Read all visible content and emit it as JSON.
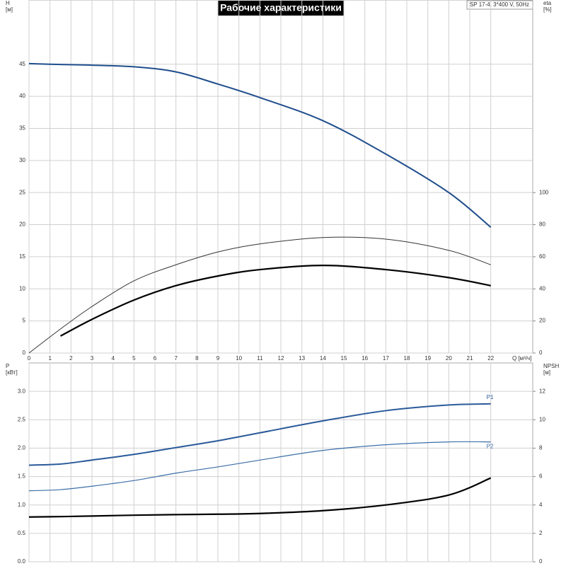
{
  "chart_data": [
    {
      "type": "line",
      "title": "Рабочие характеристики",
      "annotation": "SP 17-4, 3*400 V, 50Hz",
      "ylabel": "H",
      "yunit": "[м]",
      "y2label": "eta",
      "y2unit": "[%]",
      "xlabel": "Q [м³/ч]",
      "x": [
        0,
        1.5,
        3,
        5,
        7,
        9,
        11,
        14,
        17,
        20,
        22
      ],
      "series": [
        {
          "color": "#1f4e8c",
          "width": 2,
          "values": [
            45.1,
            44.95,
            44.85,
            44.6,
            43.8,
            41.9,
            39.8,
            36.2,
            31.0,
            25.0,
            19.6
          ]
        },
        {
          "color": "#333333",
          "width": 1,
          "axis": "y2",
          "values": [
            0,
            15,
            29,
            45,
            55,
            63,
            68,
            72,
            71,
            64,
            55
          ]
        },
        {
          "color": "#000000",
          "width": 2.2,
          "axis": "y2",
          "values": [
            null,
            10.6,
            21,
            33,
            42,
            48,
            52,
            54.6,
            52,
            47,
            42
          ]
        }
      ],
      "xlim": [
        0,
        24
      ],
      "xticks": [
        0,
        1,
        2,
        3,
        4,
        5,
        6,
        7,
        8,
        9,
        10,
        11,
        12,
        13,
        14,
        15,
        16,
        17,
        18,
        19,
        20,
        21,
        22
      ],
      "ylim": [
        0,
        55
      ],
      "yticks": [
        0,
        5,
        10,
        15,
        20,
        25,
        30,
        35,
        40,
        45
      ],
      "y2lim": [
        0,
        220
      ],
      "y2ticks": [
        0,
        20,
        40,
        60,
        80,
        100
      ],
      "grid": true
    },
    {
      "type": "line",
      "ylabel": "P",
      "yunit": "[кВт]",
      "y2label": "NPSH",
      "y2unit": "[м]",
      "x": [
        0,
        1.5,
        3,
        5,
        7,
        9,
        11,
        14,
        17,
        20,
        22
      ],
      "series": [
        {
          "name": "P1",
          "color": "#2a5a9a",
          "width": 2,
          "values": [
            1.7,
            1.72,
            1.79,
            1.89,
            2.01,
            2.13,
            2.27,
            2.48,
            2.66,
            2.76,
            2.78
          ]
        },
        {
          "name": "P2",
          "color": "#3b6ea8",
          "width": 1.2,
          "values": [
            1.25,
            1.27,
            1.33,
            1.43,
            1.56,
            1.67,
            1.79,
            1.96,
            2.06,
            2.11,
            2.11
          ]
        },
        {
          "color": "#000000",
          "width": 2.2,
          "axis": "y2",
          "values": [
            3.15,
            3.18,
            3.22,
            3.28,
            3.32,
            3.35,
            3.4,
            3.6,
            4.0,
            4.7,
            5.9
          ]
        }
      ],
      "xlim": [
        0,
        24
      ],
      "xticks": [
        0,
        1,
        2,
        3,
        4,
        5,
        6,
        7,
        8,
        9,
        10,
        11,
        12,
        13,
        14,
        15,
        16,
        17,
        18,
        19,
        20,
        21,
        22
      ],
      "ylim": [
        0,
        3.5
      ],
      "yticks": [
        {
          "value": 0,
          "label": "0.0"
        },
        0.5,
        {
          "value": 1,
          "label": "1.0"
        },
        1.5,
        {
          "value": 2,
          "label": "2.0"
        },
        2.5,
        {
          "value": 3,
          "label": "3.0"
        }
      ],
      "y2lim": [
        0,
        14
      ],
      "y2ticks": [
        0,
        2,
        4,
        6,
        8,
        10,
        12
      ],
      "grid": true
    }
  ]
}
